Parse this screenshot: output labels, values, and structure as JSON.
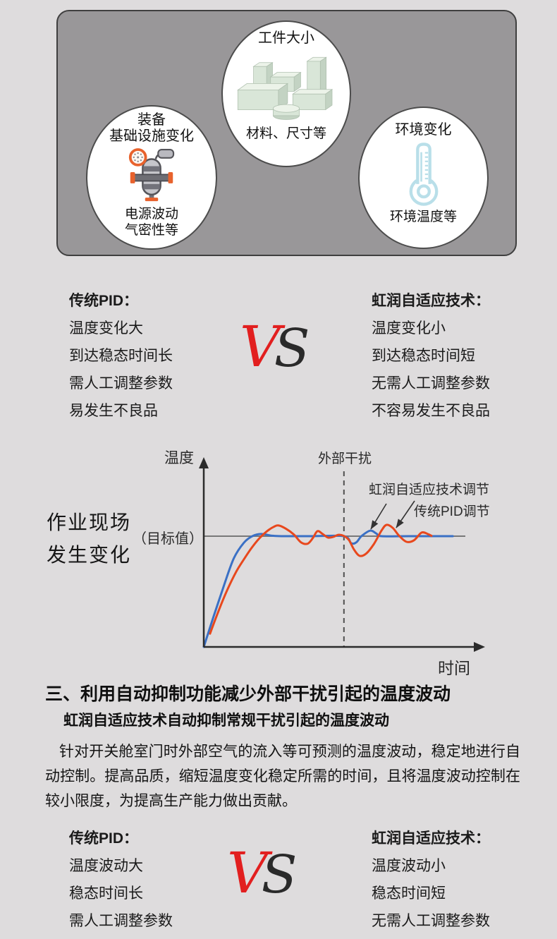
{
  "factors_panel": {
    "workpiece": {
      "title": "工件大小",
      "caption": "材料、尺寸等"
    },
    "equipment": {
      "title_line1": "装备",
      "title_line2": "基础设施变化",
      "caption_line1": "电源波动",
      "caption_line2": "气密性等"
    },
    "environment": {
      "title": "环境变化",
      "caption": "环境温度等"
    }
  },
  "comparison_top": {
    "left": {
      "title": "传统PID：",
      "items": [
        "温度变化大",
        "到达稳态时间长",
        "需人工调整参数",
        "易发生不良品"
      ]
    },
    "vs": {
      "v": "V",
      "s": "S",
      "v_color": "#e21f1f",
      "s_color": "#2a2a2a"
    },
    "right": {
      "title": "虹润自适应技术：",
      "items": [
        "温度变化小",
        "到达稳态时间短",
        "无需人工调整参数",
        "不容易发生不良品"
      ]
    }
  },
  "scene_label": {
    "line1": "作业现场",
    "line2": "发生变化"
  },
  "chart_data": {
    "type": "line",
    "title": "",
    "xlabel": "时间",
    "ylabel": "温度",
    "target_label": "（目标值）",
    "target_y": 100,
    "disturbance_label": "外部干扰",
    "disturbance_x": 56,
    "xlim": [
      0,
      100
    ],
    "ylim": [
      0,
      115
    ],
    "grid": false,
    "axis_color": "#2b2b2b",
    "target_line_color": "#787878",
    "series": [
      {
        "name": "虹润自适应技术调节",
        "color": "#3a70c5",
        "points": [
          [
            0,
            0
          ],
          [
            4,
            28
          ],
          [
            8,
            55
          ],
          [
            12,
            80
          ],
          [
            16,
            94
          ],
          [
            19.4,
            100
          ],
          [
            23,
            102
          ],
          [
            27,
            100.5
          ],
          [
            31,
            100
          ],
          [
            43,
            100
          ],
          [
            56,
            100
          ],
          [
            58.9,
            93.6
          ],
          [
            61,
            94.5
          ],
          [
            63,
            100
          ],
          [
            66.5,
            105
          ],
          [
            69,
            102.3
          ],
          [
            71,
            100
          ],
          [
            82,
            100
          ],
          [
            99.5,
            100
          ]
        ]
      },
      {
        "name": "传统PID调节",
        "color": "#e8481d",
        "points": [
          [
            2.5,
            12
          ],
          [
            6,
            33
          ],
          [
            9.5,
            52
          ],
          [
            13,
            68
          ],
          [
            16,
            79
          ],
          [
            19,
            89
          ],
          [
            22,
            97.5
          ],
          [
            25,
            104
          ],
          [
            28,
            108.5
          ],
          [
            30,
            109.6
          ],
          [
            33,
            106.5
          ],
          [
            36,
            101.5
          ],
          [
            38.9,
            94.3
          ],
          [
            41.5,
            93.2
          ],
          [
            43.5,
            98
          ],
          [
            45.4,
            104.5
          ],
          [
            47.5,
            102
          ],
          [
            49.6,
            98.8
          ],
          [
            51.7,
            99.3
          ],
          [
            53.8,
            101.2
          ],
          [
            56,
            100.2
          ],
          [
            58,
            96.5
          ],
          [
            60,
            88
          ],
          [
            62.3,
            82.2
          ],
          [
            65,
            84.5
          ],
          [
            68,
            93
          ],
          [
            71,
            105
          ],
          [
            73,
            110.2
          ],
          [
            75.5,
            107.5
          ],
          [
            78,
            100.5
          ],
          [
            81,
            94.9
          ],
          [
            84,
            96.3
          ],
          [
            87,
            103.2
          ],
          [
            89.5,
            102
          ],
          [
            91,
            100.3
          ]
        ]
      }
    ]
  },
  "section": {
    "heading": "三、利用自动抑制功能减少外部干扰引起的温度波动",
    "subheading": "虹润自适应技术自动抑制常规干扰引起的温度波动",
    "paragraph": "针对开关舱室门时外部空气的流入等可预测的温度波动，稳定地进行自动控制。提高品质，缩短温度变化稳定所需的时间，且将温度波动控制在较小限度，为提高生产能力做出贡献。"
  },
  "comparison_bottom": {
    "left": {
      "title": "传统PID：",
      "items": [
        "温度波动大",
        "稳态时间长",
        "需人工调整参数"
      ]
    },
    "vs": {
      "v": "V",
      "s": "S"
    },
    "right": {
      "title": "虹润自适应技术：",
      "items": [
        "温度波动小",
        "稳态时间短",
        "无需人工调整参数"
      ]
    }
  }
}
